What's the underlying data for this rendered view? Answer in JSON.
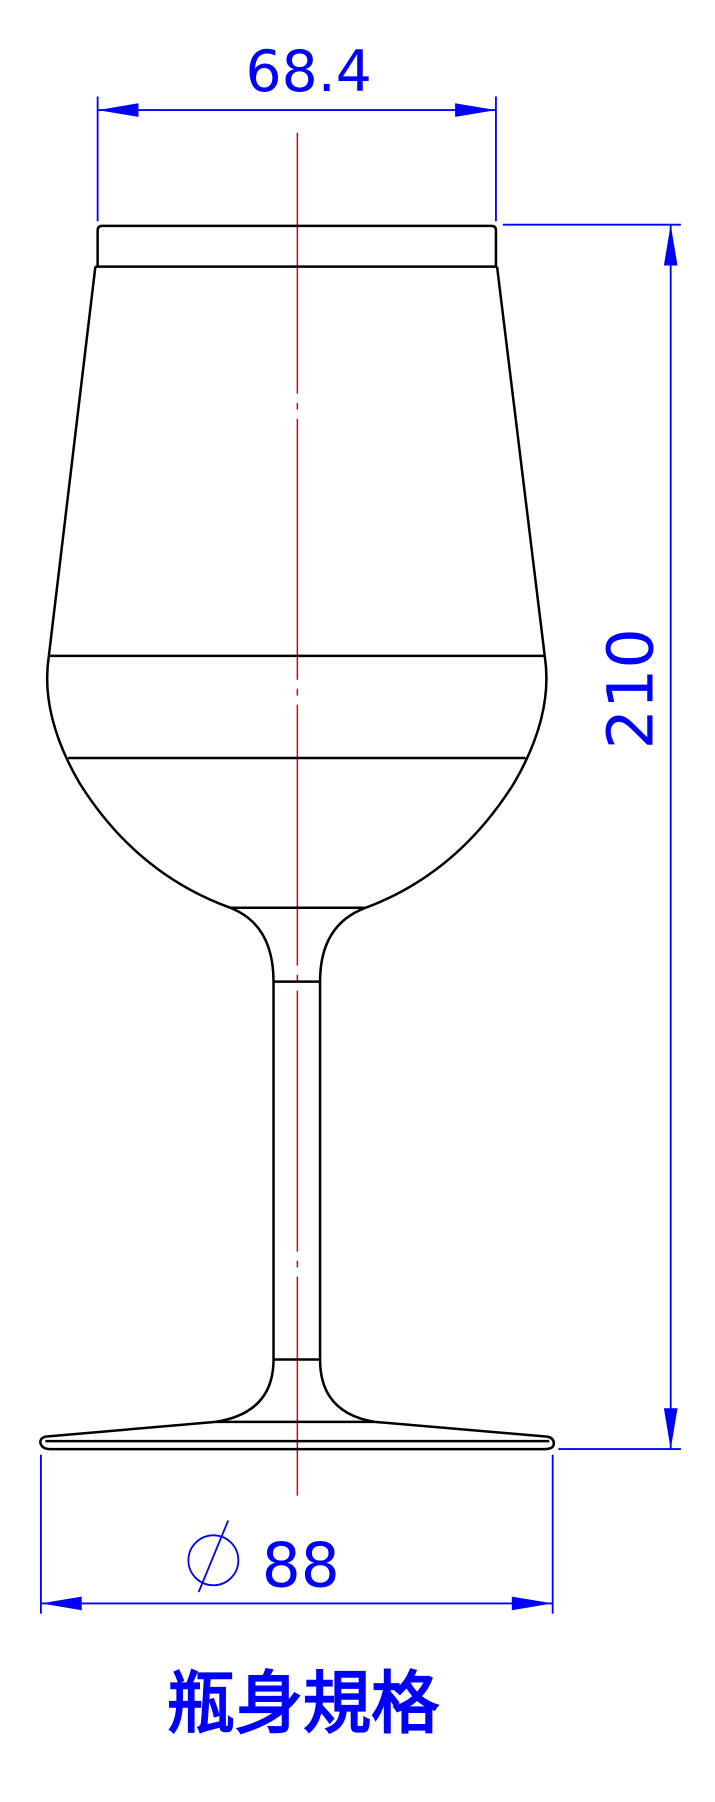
{
  "dimensions": {
    "top_width": "68.4",
    "height": "210",
    "base_diameter": "88"
  },
  "caption": "瓶身規格"
}
